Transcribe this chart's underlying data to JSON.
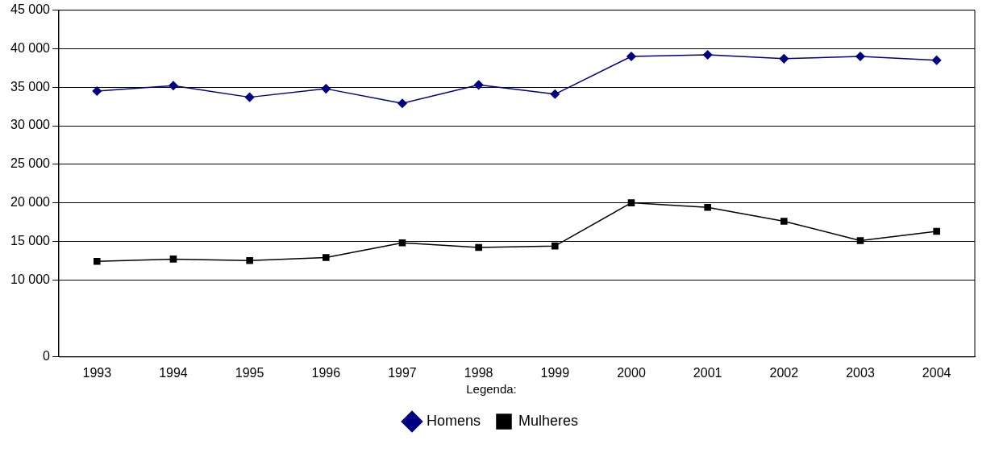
{
  "chart_data": {
    "type": "line",
    "categories": [
      "1993",
      "1994",
      "1995",
      "1996",
      "1997",
      "1998",
      "1999",
      "2000",
      "2001",
      "2002",
      "2003",
      "2004"
    ],
    "series": [
      {
        "name": "Homens",
        "color": "#000080",
        "marker": "diamond",
        "values": [
          34500,
          35200,
          33700,
          34800,
          32900,
          35300,
          34100,
          39000,
          39200,
          38700,
          39000,
          38500
        ]
      },
      {
        "name": "Mulheres",
        "color": "#000000",
        "marker": "square",
        "values": [
          12400,
          12700,
          12500,
          12900,
          14800,
          14200,
          14400,
          20000,
          19400,
          17600,
          15100,
          16300
        ]
      }
    ],
    "ylim": [
      0,
      45000
    ],
    "yticks": [
      {
        "value": 0,
        "label": "0"
      },
      {
        "value": 10000,
        "label": "10 000"
      },
      {
        "value": 15000,
        "label": "15 000"
      },
      {
        "value": 20000,
        "label": "20 000"
      },
      {
        "value": 25000,
        "label": "25 000"
      },
      {
        "value": 30000,
        "label": "30 000"
      },
      {
        "value": 35000,
        "label": "35 000"
      },
      {
        "value": 40000,
        "label": "40 000"
      },
      {
        "value": 45000,
        "label": "45 000"
      }
    ],
    "grid": "y",
    "legend": "bottom",
    "legend_title": "Legenda:"
  }
}
